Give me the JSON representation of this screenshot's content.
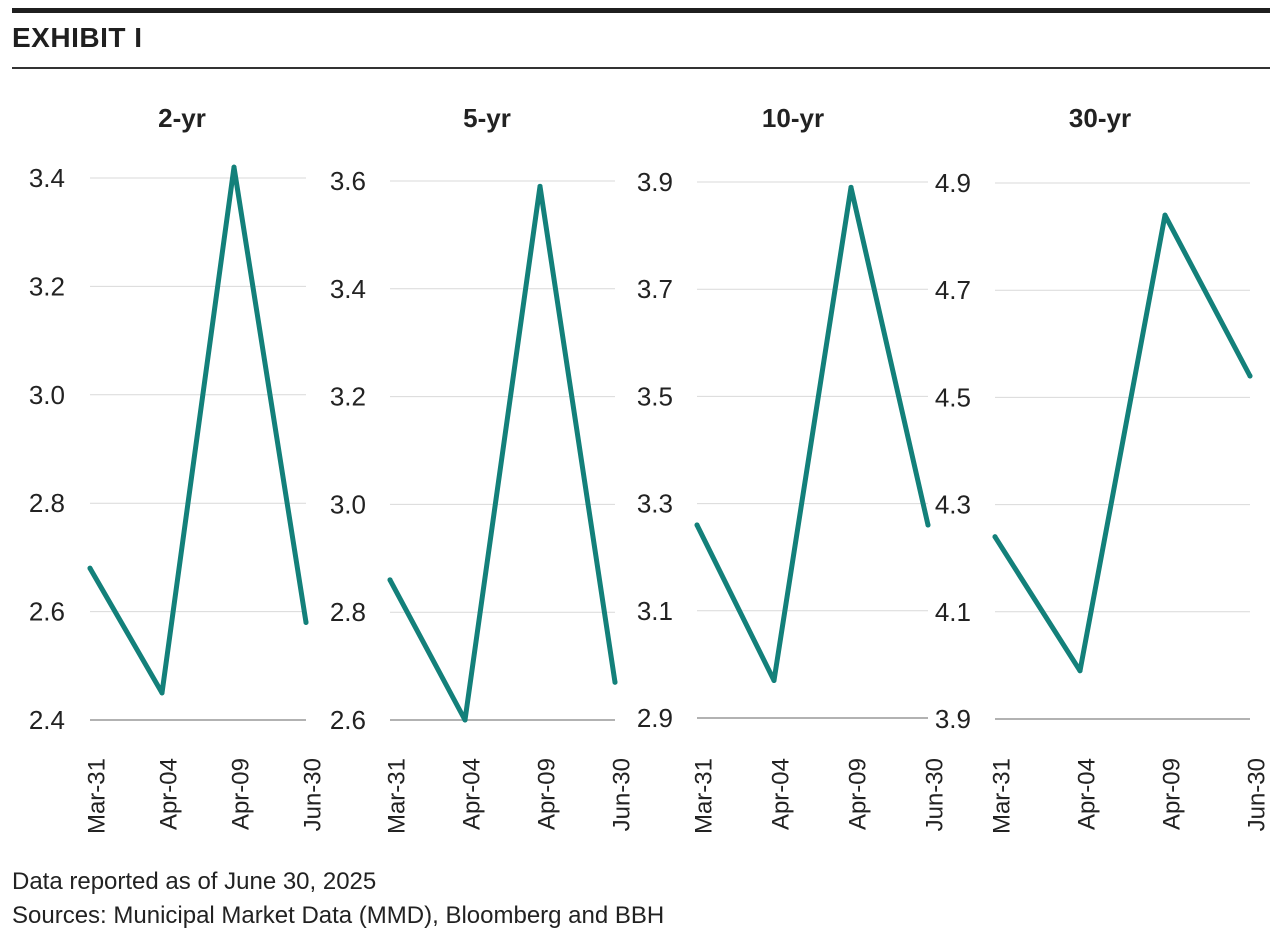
{
  "exhibit": {
    "title": "EXHIBIT I"
  },
  "footnotes": {
    "date_note": "Data reported as of June 30, 2025",
    "sources": "Sources: Municipal Market Data (MMD), Bloomberg and BBH"
  },
  "colors": {
    "line": "#13807a",
    "grid": "#d9d9d9",
    "axis": "#999999",
    "text": "#222222"
  },
  "chart_data": [
    {
      "type": "line",
      "title": "2-yr",
      "categories": [
        "Mar-31",
        "Apr-04",
        "Apr-09",
        "Jun-30"
      ],
      "values": [
        2.68,
        2.45,
        3.42,
        2.58
      ],
      "ylim": [
        2.4,
        3.4
      ],
      "yticks": [
        "3.4",
        "3.2",
        "3.0",
        "2.8",
        "2.6",
        "2.4"
      ],
      "grid": true
    },
    {
      "type": "line",
      "title": "5-yr",
      "categories": [
        "Mar-31",
        "Apr-04",
        "Apr-09",
        "Jun-30"
      ],
      "values": [
        2.86,
        2.6,
        3.59,
        2.67
      ],
      "ylim": [
        2.6,
        3.6
      ],
      "yticks": [
        "3.6",
        "3.4",
        "3.2",
        "3.0",
        "2.8",
        "2.6"
      ],
      "grid": true
    },
    {
      "type": "line",
      "title": "10-yr",
      "categories": [
        "Mar-31",
        "Apr-04",
        "Apr-09",
        "Jun-30"
      ],
      "values": [
        3.26,
        2.97,
        3.89,
        3.26
      ],
      "ylim": [
        2.9,
        3.9
      ],
      "yticks": [
        "3.9",
        "3.7",
        "3.5",
        "3.3",
        "3.1",
        "2.9"
      ],
      "grid": true
    },
    {
      "type": "line",
      "title": "30-yr",
      "categories": [
        "Mar-31",
        "Apr-04",
        "Apr-09",
        "Jun-30"
      ],
      "values": [
        4.24,
        3.99,
        4.84,
        4.54
      ],
      "ylim": [
        3.9,
        4.9
      ],
      "yticks": [
        "4.9",
        "4.7",
        "4.5",
        "4.3",
        "4.1",
        "3.9"
      ],
      "grid": true
    }
  ]
}
